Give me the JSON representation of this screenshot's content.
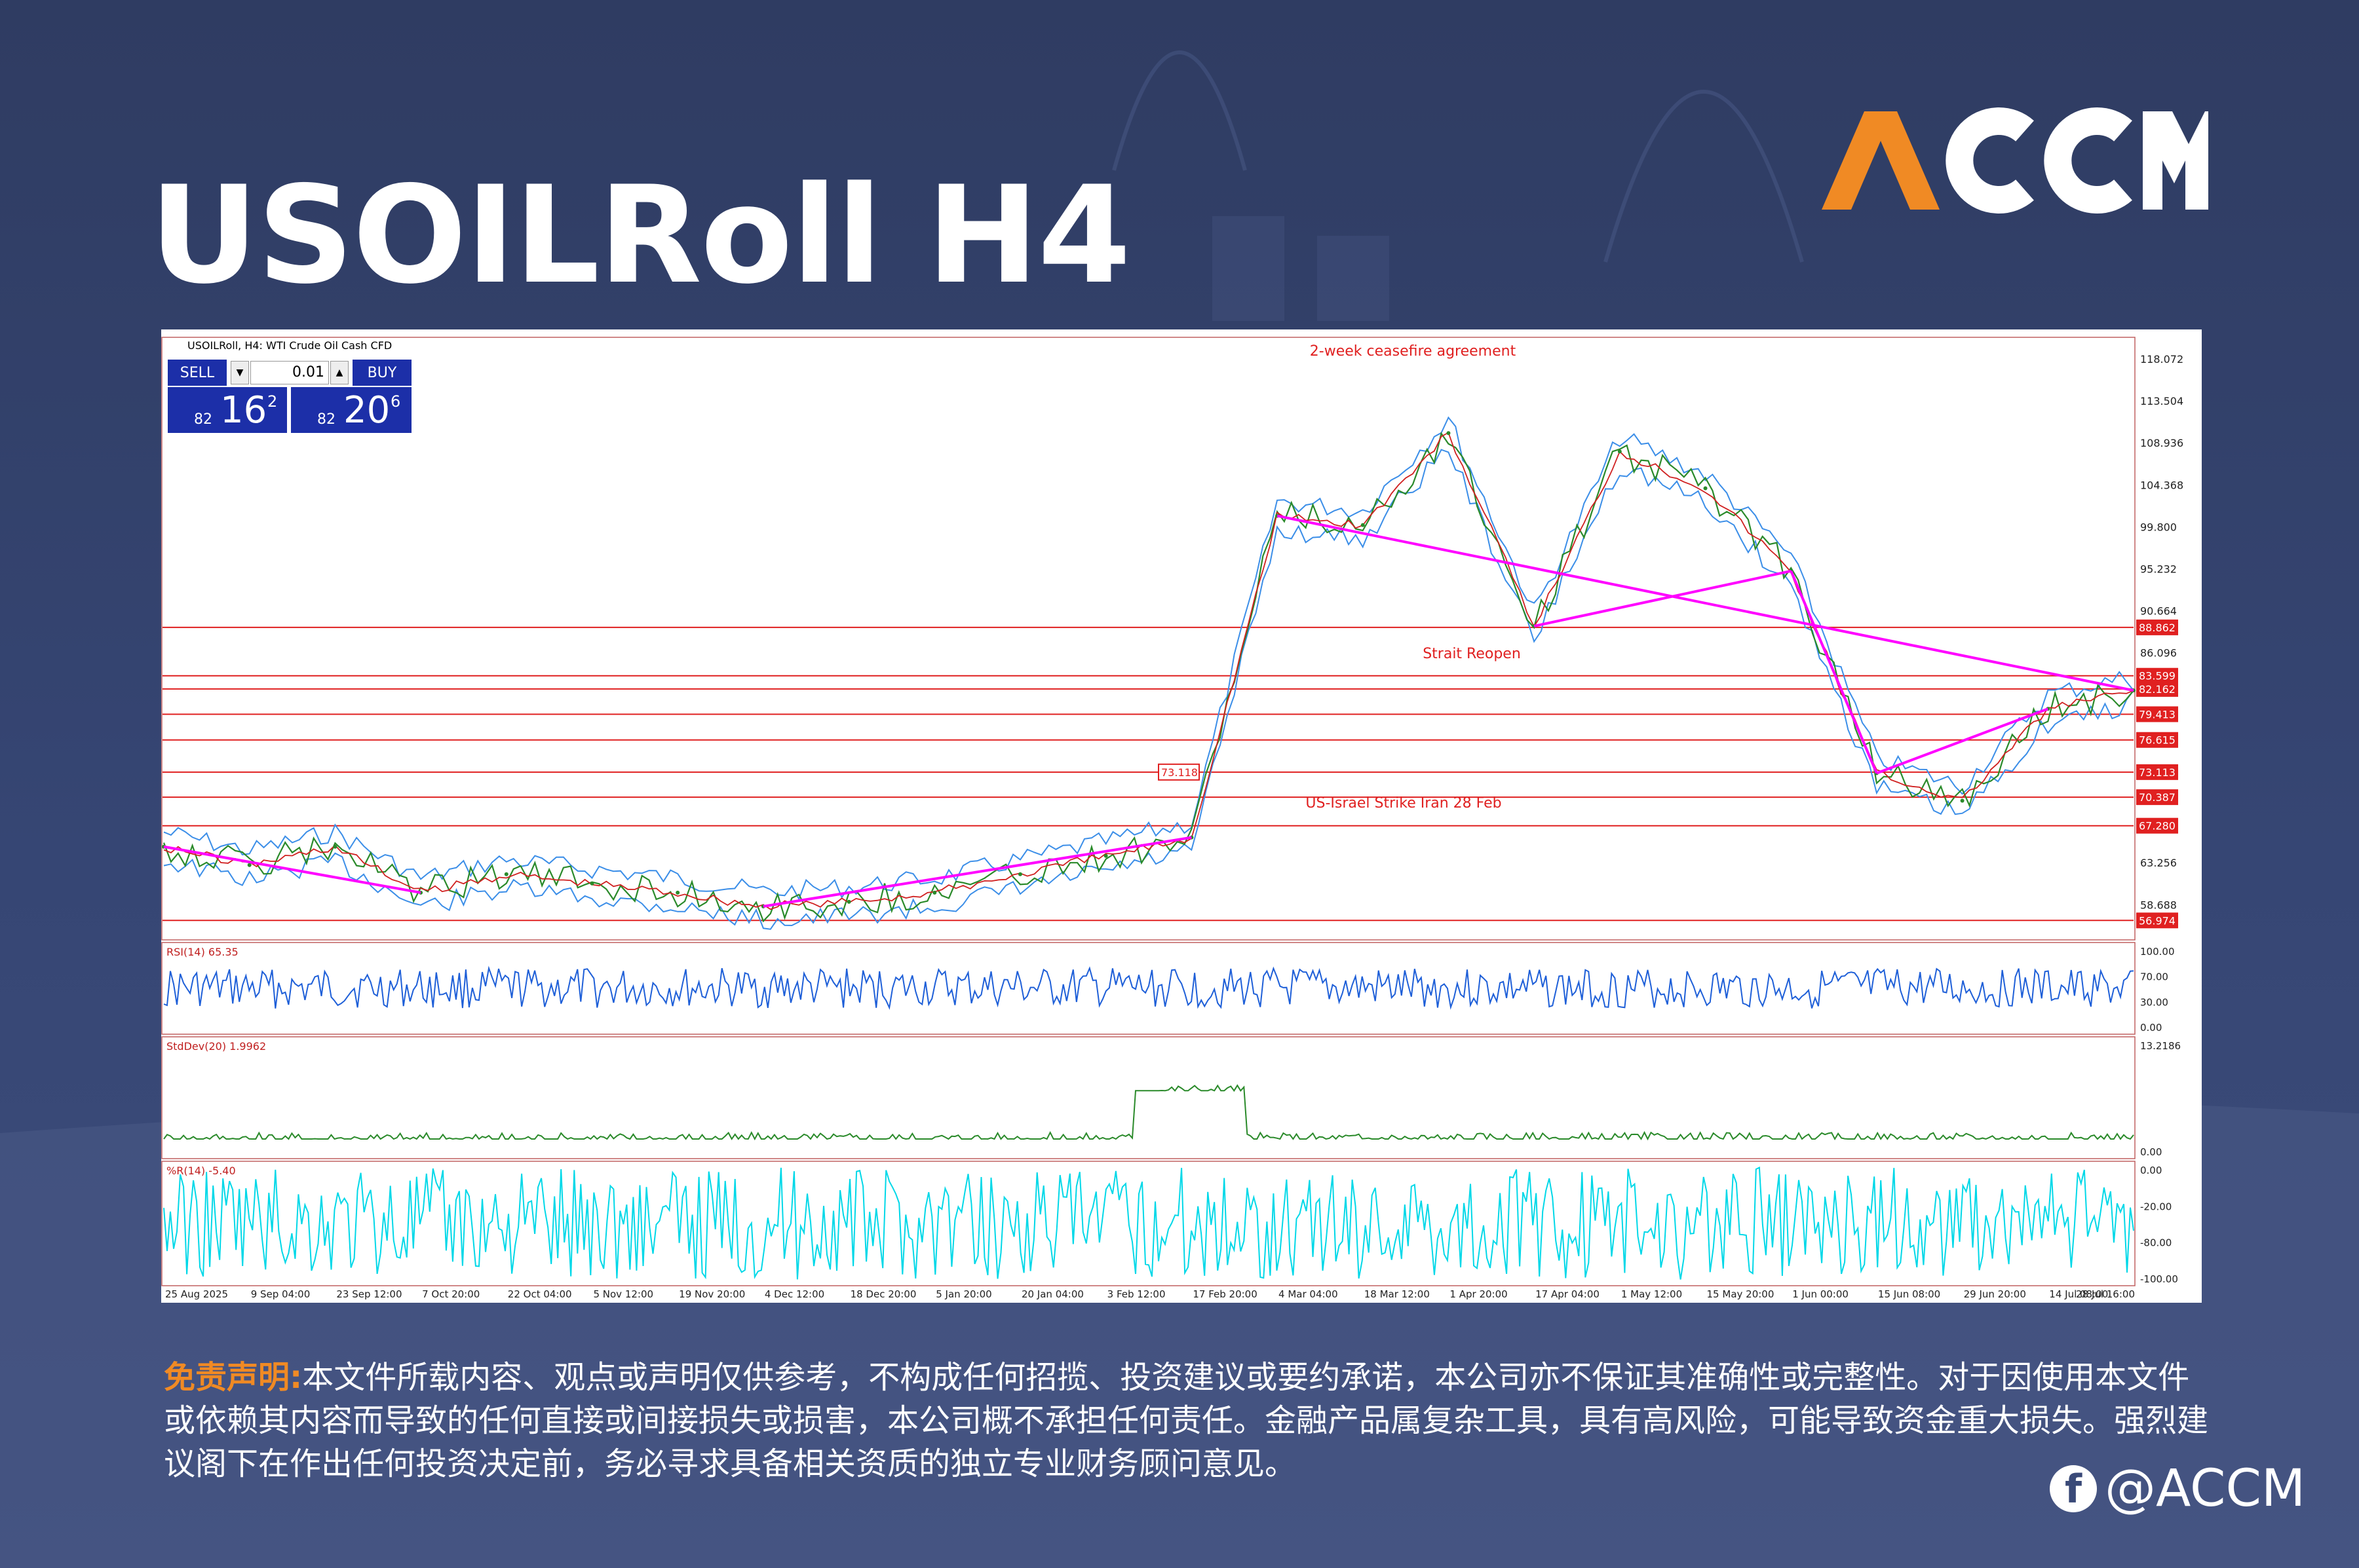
{
  "page": {
    "title": "USOILRoll H4",
    "logo_text": "ACCM",
    "disclaimer_label": "免责声明:",
    "disclaimer_text": "本文件所载内容、观点或声明仅供参考，不构成任何招揽、投资建议或要约承诺，本公司亦不保证其准确性或完整性。对于因使用本文件或依赖其内容而导致的任何直接或间接损失或损害，本公司概不承担任何责任。金融产品属复杂工具，具有高风险，可能导致资金重大损失。强烈建议阁下在作出任何投资决定前，务必寻求具备相关资质的独立专业财务顾问意见。",
    "social_handle": "@ACCM",
    "social_icon": "facebook-icon",
    "colors": {
      "accent": "#f08a24",
      "background": "#34426e",
      "price_line": "#ff0000",
      "trend_line": "#ff00ff"
    }
  },
  "trade_panel": {
    "sell_label": "SELL",
    "buy_label": "BUY",
    "lot": "0.01",
    "sell_prefix": "82",
    "sell_big": "16",
    "sell_sup": "2",
    "buy_prefix": "82",
    "buy_big": "20",
    "buy_sup": "6"
  },
  "chart_data": {
    "type": "line",
    "chart_header": "USOILRoll, H4: WTI Crude Oil Cash CFD",
    "x_tick_labels": [
      "25 Aug 2025",
      "9 Sep 04:00",
      "23 Sep 12:00",
      "7 Oct 20:00",
      "22 Oct 04:00",
      "5 Nov 12:00",
      "19 Nov 20:00",
      "4 Dec 12:00",
      "18 Dec 20:00",
      "5 Jan 20:00",
      "20 Jan 04:00",
      "3 Feb 12:00",
      "17 Feb 20:00",
      "4 Mar 04:00",
      "18 Mar 12:00",
      "1 Apr 20:00",
      "17 Apr 04:00",
      "1 May 12:00",
      "15 May 20:00",
      "1 Jun 00:00",
      "15 Jun 08:00",
      "29 Jun 20:00",
      "14 Jul 08:00",
      "28 Jul 16:00"
    ],
    "y_tick_labels": [
      "118.072",
      "113.504",
      "108.936",
      "104.368",
      "99.800",
      "95.232",
      "90.664",
      "86.096",
      "63.256",
      "58.688"
    ],
    "ylim": [
      55,
      120
    ],
    "price_series": [
      {
        "d": "25 Aug 2025",
        "v": 65
      },
      {
        "d": "9 Sep 04:00",
        "v": 63
      },
      {
        "d": "23 Sep 12:00",
        "v": 65
      },
      {
        "d": "7 Oct 20:00",
        "v": 60
      },
      {
        "d": "22 Oct 04:00",
        "v": 62
      },
      {
        "d": "5 Nov 12:00",
        "v": 61
      },
      {
        "d": "19 Nov 20:00",
        "v": 60
      },
      {
        "d": "4 Dec 12:00",
        "v": 58.5
      },
      {
        "d": "18 Dec 20:00",
        "v": 59
      },
      {
        "d": "5 Jan 20:00",
        "v": 60
      },
      {
        "d": "20 Jan 04:00",
        "v": 62
      },
      {
        "d": "3 Feb 12:00",
        "v": 64
      },
      {
        "d": "17 Feb 20:00",
        "v": 66
      },
      {
        "d": "4 Mar 04:00",
        "v": 101
      },
      {
        "d": "18 Mar 12:00",
        "v": 100
      },
      {
        "d": "1 Apr 20:00",
        "v": 110
      },
      {
        "d": "17 Apr 04:00",
        "v": 89
      },
      {
        "d": "1 May 12:00",
        "v": 108
      },
      {
        "d": "15 May 20:00",
        "v": 104
      },
      {
        "d": "1 Jun 00:00",
        "v": 95
      },
      {
        "d": "15 Jun 08:00",
        "v": 73
      },
      {
        "d": "29 Jun 20:00",
        "v": 70
      },
      {
        "d": "14 Jul 08:00",
        "v": 80
      },
      {
        "d": "28 Jul 16:00",
        "v": 82
      }
    ],
    "horizontal_levels": [
      {
        "value": 88.862,
        "label": "88.862"
      },
      {
        "value": 83.599,
        "label": "83.599"
      },
      {
        "value": 82.162,
        "label": "82.162"
      },
      {
        "value": 79.413,
        "label": "79.413"
      },
      {
        "value": 76.615,
        "label": "76.615"
      },
      {
        "value": 73.113,
        "label": "73.113"
      },
      {
        "value": 70.387,
        "label": "70.387"
      },
      {
        "value": 67.28,
        "label": "67.280"
      },
      {
        "value": 56.974,
        "label": "56.974"
      }
    ],
    "level_marker": "73.118",
    "annotations": [
      "2-week ceasefire agreement",
      "Strait Reopen",
      "US-Israel Strike Iran 28 Feb"
    ],
    "indicators": [
      {
        "name": "RSI(14) 65.35",
        "ticks": [
          "100.00",
          "70.00",
          "30.00",
          "0.00"
        ]
      },
      {
        "name": "StdDev(20) 1.9962",
        "ticks": [
          "13.2186",
          "0.00"
        ]
      },
      {
        "name": "%R(14) -5.40",
        "ticks": [
          "0.00",
          "-20.00",
          "-80.00",
          "-100.00"
        ]
      }
    ],
    "grid": false
  }
}
